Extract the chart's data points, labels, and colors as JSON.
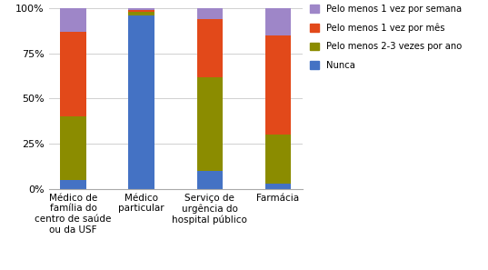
{
  "categories": [
    "Médico de\nfamília do\ncentro de saúde\nou da USF",
    "Médico\nparticular",
    "Serviço de\nurgência do\nhospital público",
    "Farmácia"
  ],
  "series": {
    "Nunca": [
      5,
      96,
      10,
      3
    ],
    "Pelo menos 2-3 vezes por ano": [
      35,
      2,
      52,
      27
    ],
    "Pelo menos 1 vez por mês": [
      47,
      1,
      32,
      55
    ],
    "Pelo menos 1 vez por semana": [
      13,
      1,
      6,
      15
    ]
  },
  "colors": {
    "Nunca": "#4472c4",
    "Pelo menos 2-3 vezes por ano": "#8b8c00",
    "Pelo menos 1 vez por mês": "#e2491a",
    "Pelo menos 1 vez por semana": "#9e86c8"
  },
  "ylim": [
    0,
    100
  ],
  "yticks": [
    0,
    25,
    50,
    75,
    100
  ],
  "ytick_labels": [
    "0%",
    "25%",
    "50%",
    "75%",
    "100%"
  ],
  "background_color": "#ffffff",
  "bar_width": 0.38,
  "legend_order": [
    "Pelo menos 1 vez por semana",
    "Pelo menos 1 vez por mês",
    "Pelo menos 2-3 vezes por ano",
    "Nunca"
  ],
  "layer_order": [
    "Nunca",
    "Pelo menos 2-3 vezes por ano",
    "Pelo menos 1 vez por mês",
    "Pelo menos 1 vez por semana"
  ]
}
